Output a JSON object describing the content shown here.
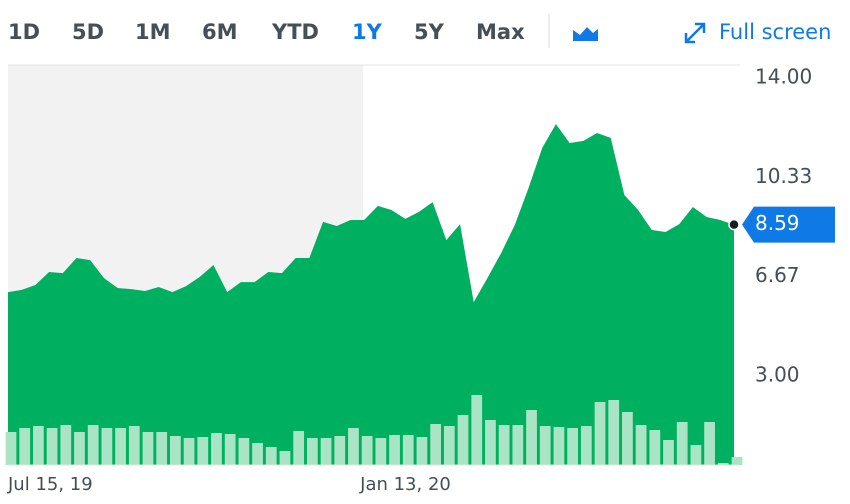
{
  "ranges": [
    "1D",
    "5D",
    "1M",
    "6M",
    "YTD",
    "1Y",
    "5Y",
    "Max"
  ],
  "active_range_index": 5,
  "full_screen": "Full screen",
  "chart_data": {
    "type": "area",
    "color": "#00b061",
    "categories": [
      "Jul 15, 19",
      null,
      null,
      null,
      null,
      null,
      null,
      null,
      null,
      null,
      null,
      null,
      null,
      null,
      null,
      null,
      null,
      null,
      null,
      null,
      null,
      null,
      null,
      null,
      null,
      null,
      "Jan 13, 20",
      null,
      null,
      null,
      null,
      null,
      null,
      null,
      null,
      null,
      null,
      null,
      null,
      null,
      null,
      null,
      null,
      null,
      null,
      null,
      null,
      null,
      null,
      null,
      null,
      null,
      null,
      null
    ],
    "values": [
      6.1,
      6.18,
      6.36,
      6.84,
      6.8,
      7.36,
      7.28,
      6.62,
      6.25,
      6.21,
      6.14,
      6.29,
      6.1,
      6.32,
      6.66,
      7.1,
      6.1,
      6.47,
      6.47,
      6.84,
      6.8,
      7.36,
      7.36,
      8.69,
      8.54,
      8.76,
      8.76,
      9.28,
      9.13,
      8.8,
      9.06,
      9.42,
      8.02,
      8.61,
      5.73,
      6.62,
      7.54,
      8.58,
      9.94,
      11.42,
      12.3,
      11.6,
      11.68,
      11.97,
      11.79,
      9.68,
      9.13,
      8.39,
      8.32,
      8.61,
      9.24,
      8.87,
      8.76,
      8.58
    ],
    "volume": [
      33,
      37,
      39,
      37,
      40,
      33,
      40,
      37,
      37,
      39,
      33,
      33,
      29,
      27,
      28,
      32,
      31,
      27,
      22,
      18,
      14,
      34,
      27,
      27,
      29,
      37,
      29,
      27,
      30,
      30,
      28,
      41,
      39,
      50,
      70,
      45,
      40,
      40,
      55,
      39,
      38,
      37,
      39,
      63,
      65,
      53,
      40,
      35,
      25,
      43,
      20,
      43,
      2,
      8
    ],
    "volume_color": "#a9e4c4",
    "last_price": 8.59,
    "ylim": [
      -0.28,
      14.48
    ],
    "yticks": [
      {
        "value": 3,
        "label": "3.00"
      },
      6.67,
      10.33,
      {
        "value": 14,
        "label": "14.00"
      }
    ],
    "grid": false
  }
}
